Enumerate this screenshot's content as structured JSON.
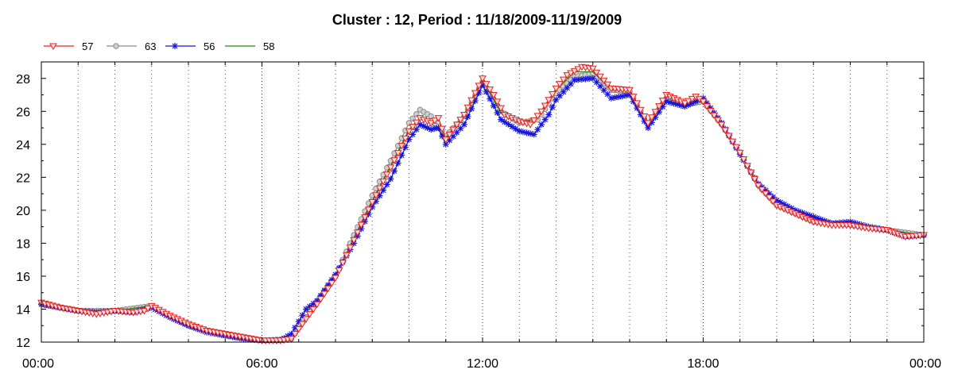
{
  "chart_data": {
    "type": "line",
    "title": "Cluster : 12, Period : 11/18/2009-11/19/2009",
    "xlabel": "",
    "ylabel": "",
    "xlim": [
      0,
      24
    ],
    "ylim": [
      12,
      29
    ],
    "x_ticks": [
      "00:00",
      "06:00",
      "12:00",
      "18:00",
      "00:00"
    ],
    "y_ticks": [
      12,
      14,
      16,
      18,
      20,
      22,
      24,
      26,
      28
    ],
    "grid": true,
    "legend_position": "top-left",
    "series": [
      {
        "name": "57",
        "color": "#e8221f",
        "marker": "triangle-down",
        "points": [
          [
            0,
            14.4
          ],
          [
            0.5,
            14.1
          ],
          [
            1,
            13.9
          ],
          [
            1.5,
            13.7
          ],
          [
            2,
            13.9
          ],
          [
            2.5,
            13.8
          ],
          [
            2.8,
            13.9
          ],
          [
            3,
            14.2
          ],
          [
            3.5,
            13.6
          ],
          [
            4,
            13.1
          ],
          [
            4.5,
            12.7
          ],
          [
            5,
            12.5
          ],
          [
            5.5,
            12.3
          ],
          [
            6,
            12.1
          ],
          [
            6.5,
            12.1
          ],
          [
            6.8,
            12.2
          ],
          [
            7,
            12.8
          ],
          [
            7.5,
            14.3
          ],
          [
            8,
            15.9
          ],
          [
            8.5,
            18.2
          ],
          [
            9,
            20.5
          ],
          [
            9.5,
            22.6
          ],
          [
            10,
            24.8
          ],
          [
            10.3,
            25.6
          ],
          [
            10.6,
            25.3
          ],
          [
            10.8,
            25.6
          ],
          [
            11,
            24.3
          ],
          [
            11.5,
            25.8
          ],
          [
            12,
            28.0
          ],
          [
            12.3,
            27.0
          ],
          [
            12.6,
            25.8
          ],
          [
            13,
            25.4
          ],
          [
            13.3,
            25.2
          ],
          [
            13.6,
            26.0
          ],
          [
            14,
            27.4
          ],
          [
            14.3,
            28.2
          ],
          [
            14.7,
            28.7
          ],
          [
            15,
            28.6
          ],
          [
            15.5,
            27.4
          ],
          [
            16,
            27.3
          ],
          [
            16.5,
            25.3
          ],
          [
            17,
            27.0
          ],
          [
            17.5,
            26.5
          ],
          [
            17.8,
            26.9
          ],
          [
            18,
            26.6
          ],
          [
            18.5,
            25.2
          ],
          [
            19,
            23.5
          ],
          [
            19.5,
            21.5
          ],
          [
            20,
            20.3
          ],
          [
            20.5,
            19.8
          ],
          [
            21,
            19.3
          ],
          [
            21.5,
            19.1
          ],
          [
            22,
            19.1
          ],
          [
            22.5,
            18.9
          ],
          [
            23,
            18.8
          ],
          [
            23.5,
            18.4
          ],
          [
            24,
            18.5
          ]
        ]
      },
      {
        "name": "63",
        "color": "#8c8c8c",
        "marker": "circle",
        "points": [
          [
            0,
            14.3
          ],
          [
            1,
            13.9
          ],
          [
            2,
            13.9
          ],
          [
            3,
            14.2
          ],
          [
            4,
            13.0
          ],
          [
            5,
            12.4
          ],
          [
            6,
            12.1
          ],
          [
            6.8,
            12.2
          ],
          [
            7.5,
            14.5
          ],
          [
            8,
            16.0
          ],
          [
            8.5,
            18.5
          ],
          [
            9,
            20.9
          ],
          [
            9.5,
            23.0
          ],
          [
            10,
            25.3
          ],
          [
            10.3,
            26.1
          ],
          [
            10.6,
            25.7
          ],
          [
            11,
            24.5
          ],
          [
            11.5,
            25.7
          ],
          [
            12,
            27.8
          ],
          [
            12.5,
            26.0
          ],
          [
            13,
            25.3
          ],
          [
            13.5,
            25.5
          ],
          [
            14,
            27.1
          ],
          [
            14.5,
            28.1
          ],
          [
            15,
            28.3
          ],
          [
            15.5,
            27.3
          ],
          [
            16,
            27.2
          ],
          [
            16.5,
            25.2
          ],
          [
            17,
            26.8
          ],
          [
            17.5,
            26.4
          ],
          [
            18,
            26.6
          ],
          [
            18.5,
            25.2
          ],
          [
            19,
            23.5
          ],
          [
            19.5,
            21.5
          ],
          [
            20,
            20.3
          ],
          [
            21,
            19.3
          ],
          [
            22,
            19.1
          ],
          [
            23,
            18.8
          ],
          [
            24,
            18.5
          ]
        ]
      },
      {
        "name": "56",
        "color": "#1414e0",
        "marker": "asterisk",
        "points": [
          [
            0,
            14.3
          ],
          [
            0.5,
            14.1
          ],
          [
            1,
            13.9
          ],
          [
            1.5,
            13.8
          ],
          [
            2,
            13.9
          ],
          [
            2.5,
            13.8
          ],
          [
            3,
            14.1
          ],
          [
            3.5,
            13.5
          ],
          [
            4,
            13.0
          ],
          [
            4.5,
            12.6
          ],
          [
            5,
            12.4
          ],
          [
            5.5,
            12.2
          ],
          [
            6,
            12.1
          ],
          [
            6.5,
            12.1
          ],
          [
            6.8,
            12.5
          ],
          [
            7.2,
            14.0
          ],
          [
            7.5,
            14.5
          ],
          [
            8,
            16.1
          ],
          [
            8.5,
            18.0
          ],
          [
            9,
            20.2
          ],
          [
            9.5,
            21.9
          ],
          [
            10,
            24.3
          ],
          [
            10.3,
            25.2
          ],
          [
            10.6,
            24.9
          ],
          [
            10.8,
            25.0
          ],
          [
            11,
            24.0
          ],
          [
            11.5,
            25.2
          ],
          [
            12,
            27.6
          ],
          [
            12.5,
            25.5
          ],
          [
            13,
            24.8
          ],
          [
            13.4,
            24.6
          ],
          [
            13.8,
            25.8
          ],
          [
            14,
            26.7
          ],
          [
            14.5,
            27.9
          ],
          [
            15,
            28.0
          ],
          [
            15.5,
            26.8
          ],
          [
            16,
            27.0
          ],
          [
            16.5,
            25.0
          ],
          [
            17,
            26.6
          ],
          [
            17.5,
            26.3
          ],
          [
            18,
            26.8
          ],
          [
            18.5,
            25.3
          ],
          [
            19,
            23.4
          ],
          [
            19.5,
            21.6
          ],
          [
            20,
            20.6
          ],
          [
            20.5,
            20.0
          ],
          [
            21,
            19.6
          ],
          [
            21.5,
            19.2
          ],
          [
            22,
            19.3
          ],
          [
            22.5,
            19.0
          ],
          [
            23,
            18.8
          ],
          [
            23.5,
            18.4
          ],
          [
            24,
            18.5
          ]
        ]
      },
      {
        "name": "58",
        "color": "#1c8a1c",
        "marker": "none",
        "points": [
          [
            0,
            14.4
          ],
          [
            1,
            13.9
          ],
          [
            2,
            13.9
          ],
          [
            3,
            14.2
          ],
          [
            4,
            13.0
          ],
          [
            5,
            12.4
          ],
          [
            6,
            12.1
          ],
          [
            6.8,
            12.2
          ],
          [
            7.5,
            14.3
          ],
          [
            8,
            16.0
          ],
          [
            8.5,
            18.3
          ],
          [
            9,
            20.6
          ],
          [
            9.5,
            22.7
          ],
          [
            10,
            24.9
          ],
          [
            10.3,
            25.6
          ],
          [
            10.6,
            25.3
          ],
          [
            11,
            24.4
          ],
          [
            11.5,
            25.8
          ],
          [
            12,
            27.9
          ],
          [
            12.5,
            25.9
          ],
          [
            13,
            25.3
          ],
          [
            13.5,
            25.6
          ],
          [
            14,
            27.3
          ],
          [
            14.5,
            28.4
          ],
          [
            15,
            28.4
          ],
          [
            15.5,
            27.3
          ],
          [
            16,
            27.3
          ],
          [
            16.5,
            25.3
          ],
          [
            17,
            26.9
          ],
          [
            17.5,
            26.5
          ],
          [
            18,
            26.6
          ],
          [
            18.5,
            25.2
          ],
          [
            19,
            23.5
          ],
          [
            19.5,
            21.5
          ],
          [
            20,
            20.3
          ],
          [
            21,
            19.3
          ],
          [
            22,
            19.1
          ],
          [
            23,
            18.8
          ],
          [
            24,
            18.5
          ]
        ]
      }
    ]
  }
}
